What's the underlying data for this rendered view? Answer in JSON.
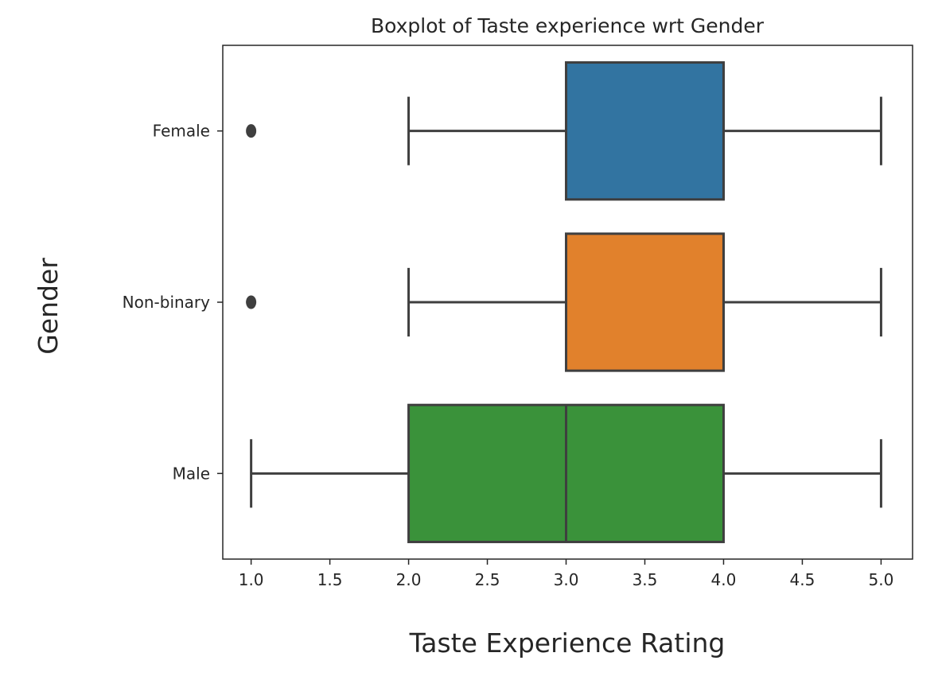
{
  "chart_data": {
    "type": "boxplot",
    "orientation": "horizontal",
    "title": "Boxplot of Taste experience wrt Gender",
    "xlabel": "Taste Experience Rating",
    "ylabel": "Gender",
    "xlim": [
      0.82,
      5.2
    ],
    "x_ticks": [
      1.0,
      1.5,
      2.0,
      2.5,
      3.0,
      3.5,
      4.0,
      4.5,
      5.0
    ],
    "x_tick_labels": [
      "1.0",
      "1.5",
      "2.0",
      "2.5",
      "3.0",
      "3.5",
      "4.0",
      "4.5",
      "5.0"
    ],
    "grid": false,
    "legend": "none",
    "line_color": "#3f3f3f",
    "categories": [
      "Female",
      "Non-binary",
      "Male"
    ],
    "series": [
      {
        "category": "Female",
        "color": "#3274a1",
        "whisker_low": 2.0,
        "q1": 3.0,
        "median": 4.0,
        "q3": 4.0,
        "whisker_high": 5.0,
        "outliers": [
          1.0
        ]
      },
      {
        "category": "Non-binary",
        "color": "#e1812c",
        "whisker_low": 2.0,
        "q1": 3.0,
        "median": 4.0,
        "q3": 4.0,
        "whisker_high": 5.0,
        "outliers": [
          1.0
        ]
      },
      {
        "category": "Male",
        "color": "#3a923a",
        "whisker_low": 1.0,
        "q1": 2.0,
        "median": 3.0,
        "q3": 4.0,
        "whisker_high": 5.0,
        "outliers": []
      }
    ]
  }
}
